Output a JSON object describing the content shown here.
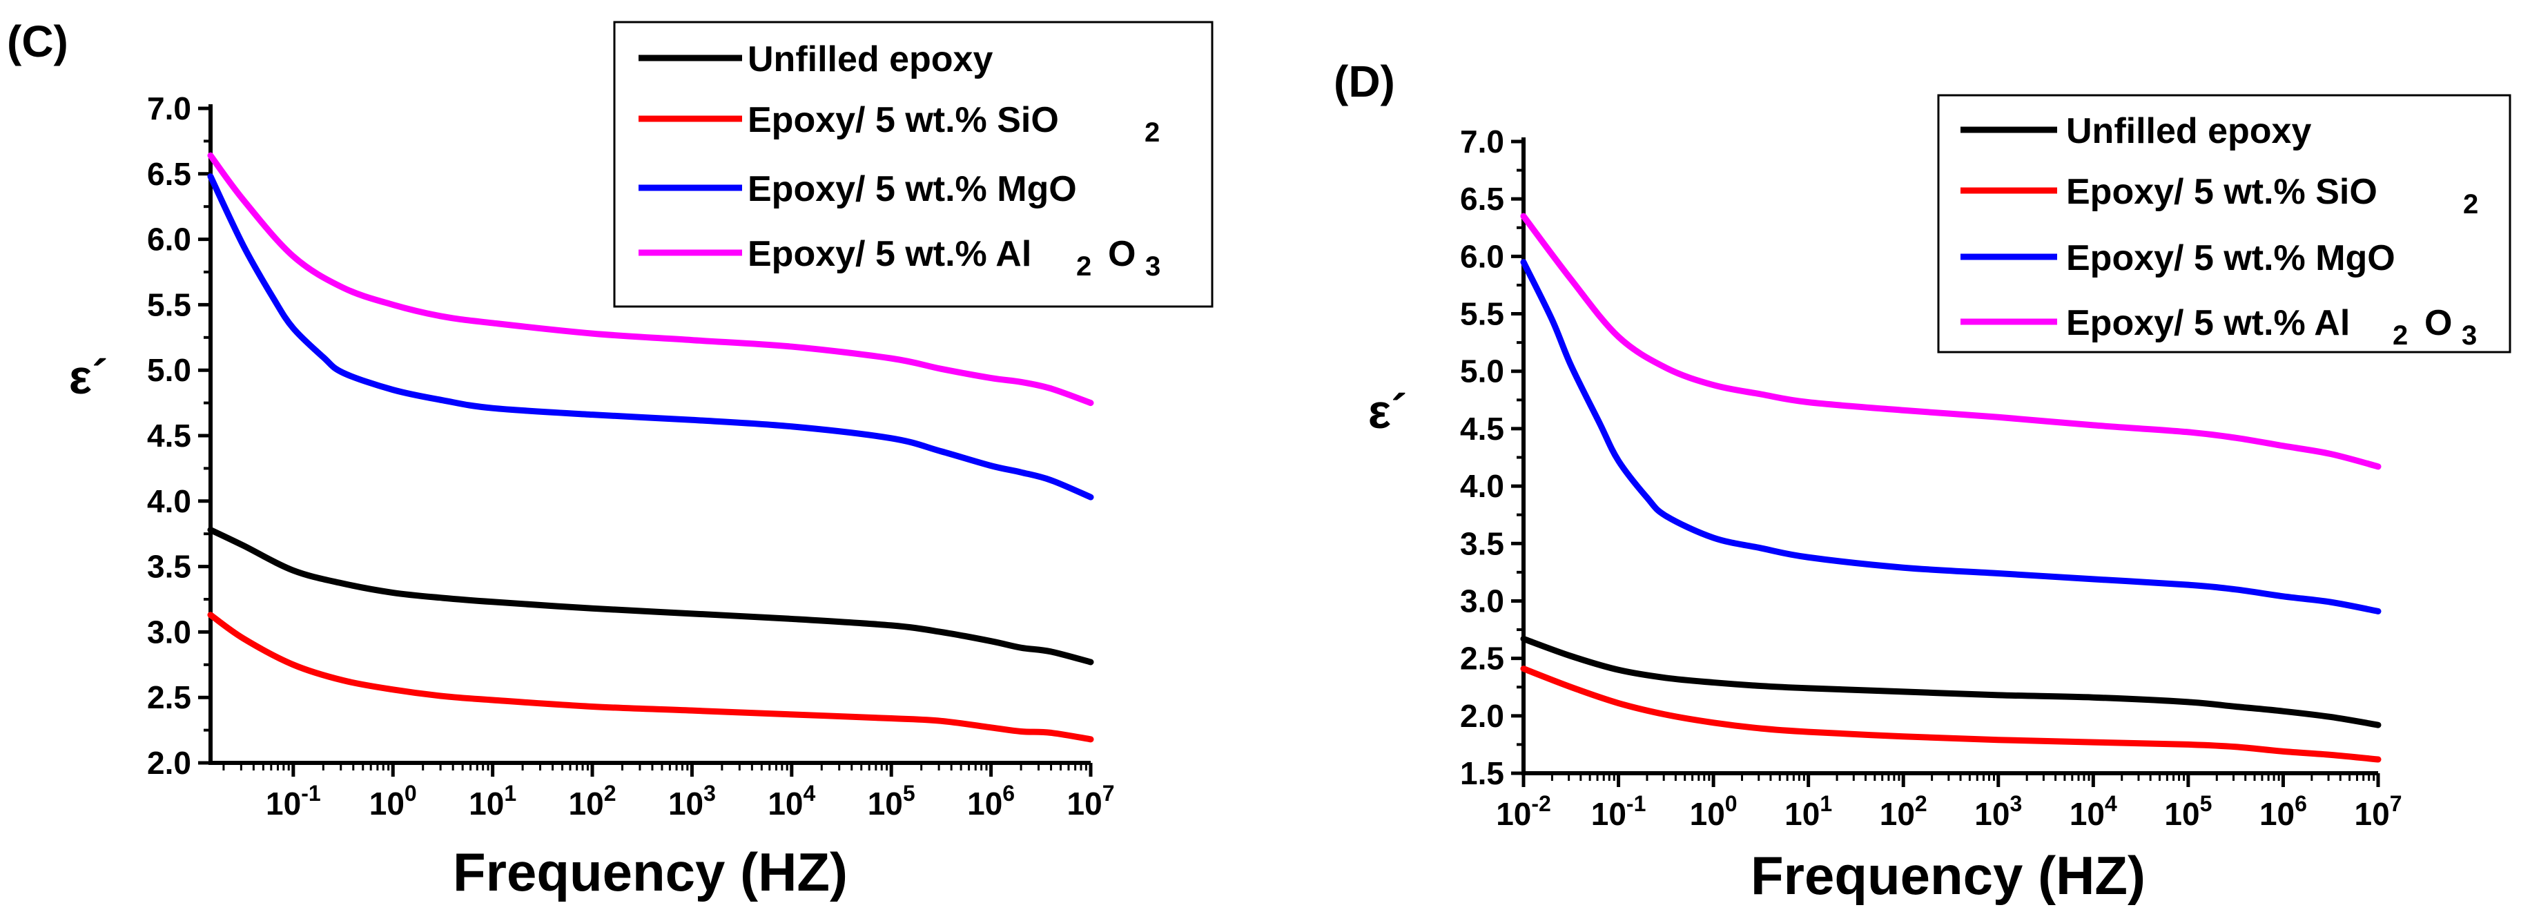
{
  "chart_data": [
    {
      "type": "line",
      "panel_label": "(C)",
      "xlabel": "Frequency (HZ)",
      "ylabel": "ε´",
      "x_scale": "log10",
      "xlim": [
        -1.83,
        7
      ],
      "ylim": [
        2.0,
        7.0
      ],
      "xtick_labels": [
        {
          "base": "10",
          "exp": "-1",
          "value": -1
        },
        {
          "base": "10",
          "exp": "0",
          "value": 0
        },
        {
          "base": "10",
          "exp": "1",
          "value": 1
        },
        {
          "base": "10",
          "exp": "2",
          "value": 2
        },
        {
          "base": "10",
          "exp": "3",
          "value": 3
        },
        {
          "base": "10",
          "exp": "4",
          "value": 4
        },
        {
          "base": "10",
          "exp": "5",
          "value": 5
        },
        {
          "base": "10",
          "exp": "6",
          "value": 6
        },
        {
          "base": "10",
          "exp": "7",
          "value": 7
        }
      ],
      "ytick_labels": [
        "2.0",
        "2.5",
        "3.0",
        "3.5",
        "4.0",
        "4.5",
        "5.0",
        "5.5",
        "6.0",
        "6.5",
        "7.0"
      ],
      "legend": {
        "position": "top-right",
        "entries": [
          {
            "text": "Unfilled epoxy",
            "sub": [],
            "color": "#000000"
          },
          {
            "text": "Epoxy/ 5 wt.% SiO",
            "sub": [
              "2"
            ],
            "color": "#ff0000"
          },
          {
            "text": "Epoxy/ 5 wt.% MgO",
            "sub": [],
            "color": "#0000ff"
          },
          {
            "text": "Epoxy/ 5 wt.% Al",
            "sub": [
              "2",
              "O",
              "3"
            ],
            "color": "#ff00ff"
          }
        ]
      },
      "series": [
        {
          "name": "Unfilled epoxy",
          "color": "#000000",
          "x": [
            -1.83,
            -1.5,
            -1,
            -0.5,
            0,
            0.5,
            1,
            2,
            3,
            4,
            5,
            5.5,
            6,
            6.3,
            6.6,
            7
          ],
          "y": [
            3.78,
            3.66,
            3.47,
            3.37,
            3.3,
            3.26,
            3.23,
            3.18,
            3.14,
            3.1,
            3.05,
            3.0,
            2.93,
            2.88,
            2.85,
            2.77
          ]
        },
        {
          "name": "Epoxy/ 5 wt.% SiO2",
          "color": "#ff0000",
          "x": [
            -1.83,
            -1.5,
            -1,
            -0.5,
            0,
            0.5,
            1,
            2,
            3,
            4,
            5,
            5.5,
            6,
            6.3,
            6.6,
            7
          ],
          "y": [
            3.13,
            2.95,
            2.75,
            2.63,
            2.56,
            2.51,
            2.48,
            2.43,
            2.4,
            2.37,
            2.34,
            2.32,
            2.27,
            2.24,
            2.23,
            2.18
          ]
        },
        {
          "name": "Epoxy/ 5 wt.% MgO",
          "color": "#0000ff",
          "x": [
            -1.83,
            -1.5,
            -1.2,
            -1,
            -0.7,
            -0.5,
            0,
            0.5,
            1,
            2,
            3,
            4,
            5,
            5.5,
            6,
            6.3,
            6.6,
            7
          ],
          "y": [
            6.48,
            5.95,
            5.55,
            5.32,
            5.1,
            4.98,
            4.85,
            4.77,
            4.71,
            4.66,
            4.62,
            4.57,
            4.48,
            4.38,
            4.27,
            4.22,
            4.16,
            4.03
          ]
        },
        {
          "name": "Epoxy/ 5 wt.% Al2O3",
          "color": "#ff00ff",
          "x": [
            -1.83,
            -1.5,
            -1,
            -0.5,
            0,
            0.5,
            1,
            2,
            3,
            4,
            5,
            5.5,
            6,
            6.3,
            6.6,
            7
          ],
          "y": [
            6.64,
            6.3,
            5.87,
            5.63,
            5.5,
            5.41,
            5.36,
            5.28,
            5.23,
            5.18,
            5.09,
            5.01,
            4.94,
            4.91,
            4.86,
            4.75
          ]
        }
      ]
    },
    {
      "type": "line",
      "panel_label": "(D)",
      "xlabel": "Frequency (HZ)",
      "ylabel": "ε´",
      "x_scale": "log10",
      "xlim": [
        -2,
        7
      ],
      "ylim": [
        1.5,
        7.0
      ],
      "xtick_labels": [
        {
          "base": "10",
          "exp": "-2",
          "value": -2
        },
        {
          "base": "10",
          "exp": "-1",
          "value": -1
        },
        {
          "base": "10",
          "exp": "0",
          "value": 0
        },
        {
          "base": "10",
          "exp": "1",
          "value": 1
        },
        {
          "base": "10",
          "exp": "2",
          "value": 2
        },
        {
          "base": "10",
          "exp": "3",
          "value": 3
        },
        {
          "base": "10",
          "exp": "4",
          "value": 4
        },
        {
          "base": "10",
          "exp": "5",
          "value": 5
        },
        {
          "base": "10",
          "exp": "6",
          "value": 6
        },
        {
          "base": "10",
          "exp": "7",
          "value": 7
        }
      ],
      "ytick_labels": [
        "1.5",
        "2.0",
        "2.5",
        "3.0",
        "3.5",
        "4.0",
        "4.5",
        "5.0",
        "5.5",
        "6.0",
        "6.5",
        "7.0"
      ],
      "legend": {
        "position": "top-right",
        "entries": [
          {
            "text": "Unfilled epoxy",
            "sub": [],
            "color": "#000000"
          },
          {
            "text": "Epoxy/ 5 wt.% SiO",
            "sub": [
              "2"
            ],
            "color": "#ff0000"
          },
          {
            "text": "Epoxy/ 5 wt.% MgO",
            "sub": [],
            "color": "#0000ff"
          },
          {
            "text": "Epoxy/ 5 wt.% Al",
            "sub": [
              "2",
              "O",
              "3"
            ],
            "color": "#ff00ff"
          }
        ]
      },
      "series": [
        {
          "name": "Unfilled epoxy",
          "color": "#000000",
          "x": [
            -2,
            -1.5,
            -1,
            -0.5,
            0,
            0.5,
            1,
            2,
            3,
            4,
            5,
            5.5,
            6,
            6.5,
            7
          ],
          "y": [
            2.67,
            2.52,
            2.4,
            2.33,
            2.29,
            2.26,
            2.24,
            2.21,
            2.18,
            2.16,
            2.12,
            2.08,
            2.04,
            1.99,
            1.92
          ]
        },
        {
          "name": "Epoxy/ 5 wt.% SiO2",
          "color": "#ff0000",
          "x": [
            -2,
            -1.5,
            -1,
            -0.5,
            0,
            0.5,
            1,
            2,
            3,
            4,
            5,
            5.5,
            6,
            6.5,
            7
          ],
          "y": [
            2.41,
            2.25,
            2.11,
            2.01,
            1.94,
            1.89,
            1.86,
            1.82,
            1.79,
            1.77,
            1.75,
            1.73,
            1.69,
            1.66,
            1.62
          ]
        },
        {
          "name": "Epoxy/ 5 wt.% MgO",
          "color": "#0000ff",
          "x": [
            -2,
            -1.7,
            -1.5,
            -1.2,
            -1,
            -0.7,
            -0.5,
            0,
            0.5,
            1,
            2,
            3,
            4,
            5,
            5.5,
            6,
            6.5,
            7
          ],
          "y": [
            5.95,
            5.45,
            5.05,
            4.55,
            4.22,
            3.9,
            3.74,
            3.55,
            3.46,
            3.38,
            3.29,
            3.24,
            3.19,
            3.14,
            3.1,
            3.04,
            2.99,
            2.91
          ]
        },
        {
          "name": "Epoxy/ 5 wt.% Al2O3",
          "color": "#ff00ff",
          "x": [
            -2,
            -1.5,
            -1,
            -0.5,
            0,
            0.5,
            1,
            2,
            3,
            4,
            5,
            5.5,
            6,
            6.5,
            7
          ],
          "y": [
            6.35,
            5.8,
            5.3,
            5.03,
            4.88,
            4.8,
            4.73,
            4.66,
            4.6,
            4.53,
            4.47,
            4.42,
            4.35,
            4.28,
            4.17
          ]
        }
      ]
    }
  ]
}
